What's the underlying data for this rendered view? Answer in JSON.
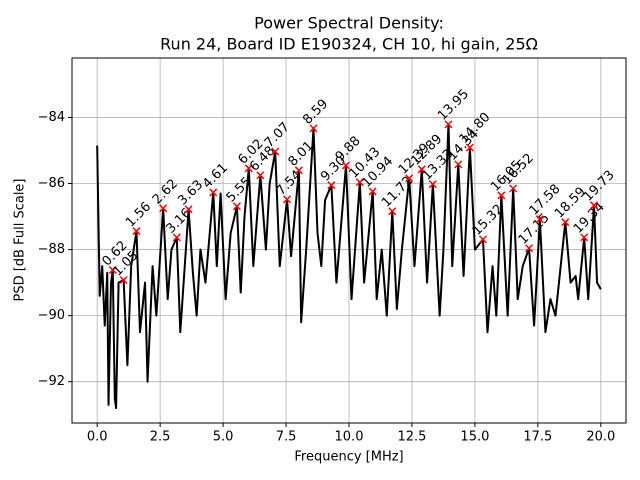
{
  "chart_data": {
    "type": "line",
    "title": [
      "Power Spectral Density:",
      "Run 24, Board ID E190324, CH 10, hi gain, 25Ω"
    ],
    "xlabel": "Frequency [MHz]",
    "ylabel": "PSD [dB Full Scale]",
    "color": "#000000",
    "x": [
      0,
      0.1,
      0.2,
      0.3,
      0.4,
      0.45,
      0.55,
      0.62,
      0.7,
      0.75,
      0.85,
      1.05,
      1.2,
      1.35,
      1.56,
      1.7,
      1.9,
      2.0,
      2.2,
      2.35,
      2.62,
      2.8,
      2.95,
      3.16,
      3.3,
      3.63,
      3.8,
      3.95,
      4.1,
      4.3,
      4.61,
      4.75,
      4.9,
      5.1,
      5.3,
      5.55,
      5.7,
      5.85,
      6.02,
      6.2,
      6.35,
      6.48,
      6.7,
      6.85,
      7.07,
      7.25,
      7.54,
      7.7,
      8.01,
      8.1,
      8.3,
      8.59,
      8.75,
      8.9,
      9.05,
      9.3,
      9.5,
      9.88,
      10.1,
      10.43,
      10.6,
      10.94,
      11.1,
      11.3,
      11.5,
      11.72,
      11.9,
      12.1,
      12.39,
      12.6,
      12.89,
      13.1,
      13.33,
      13.6,
      13.75,
      13.95,
      14.1,
      14.34,
      14.55,
      14.8,
      15.0,
      15.32,
      15.5,
      15.7,
      15.85,
      16.05,
      16.3,
      16.52,
      16.7,
      16.9,
      17.15,
      17.35,
      17.58,
      17.8,
      18.0,
      18.2,
      18.59,
      18.8,
      19.0,
      19.1,
      19.34,
      19.5,
      19.73,
      19.85,
      20.0
    ],
    "values": [
      -84.85,
      -89.4,
      -88.5,
      -90.3,
      -88.7,
      -92.7,
      -89,
      -88.62,
      -92.5,
      -92.8,
      -89,
      -88.92,
      -91.5,
      -88.5,
      -87.44,
      -90.5,
      -89,
      -92,
      -88.5,
      -90,
      -86.75,
      -89.5,
      -88,
      -87.63,
      -90.5,
      -86.78,
      -88.7,
      -90,
      -88,
      -89,
      -86.27,
      -88.5,
      -86.3,
      -89.5,
      -87.5,
      -86.69,
      -89.3,
      -87,
      -85.54,
      -88.5,
      -87,
      -85.75,
      -88,
      -86,
      -85.03,
      -88.5,
      -86.48,
      -88.2,
      -85.6,
      -90.2,
      -88,
      -84.33,
      -87.5,
      -88.5,
      -86.5,
      -86.05,
      -89,
      -85.45,
      -89.5,
      -85.96,
      -89,
      -86.24,
      -89.5,
      -88,
      -90,
      -86.84,
      -89.8,
      -88,
      -85.84,
      -88.5,
      -85.57,
      -89,
      -86.02,
      -90,
      -88,
      -84.21,
      -88.5,
      -85.42,
      -88.8,
      -84.91,
      -88,
      -87.69,
      -90.5,
      -88.5,
      -90,
      -86.36,
      -90,
      -86.15,
      -89.5,
      -88.5,
      -87.96,
      -90.3,
      -87.08,
      -90.5,
      -89.5,
      -90,
      -87.17,
      -89,
      -88.8,
      -89.5,
      -87.63,
      -89.5,
      -86.66,
      -89,
      -89.2
    ],
    "peaks": {
      "color": "#ff0000",
      "x": [
        0.62,
        1.05,
        1.56,
        2.62,
        3.16,
        3.63,
        4.61,
        5.55,
        6.02,
        6.48,
        7.07,
        7.54,
        8.01,
        8.59,
        9.3,
        9.88,
        10.43,
        10.94,
        11.72,
        12.39,
        12.89,
        13.33,
        13.95,
        14.34,
        14.8,
        15.32,
        16.05,
        16.52,
        17.15,
        17.58,
        18.59,
        19.34,
        19.73
      ],
      "values": [
        -88.62,
        -88.92,
        -87.44,
        -86.75,
        -87.63,
        -86.78,
        -86.27,
        -86.69,
        -85.54,
        -85.75,
        -85.03,
        -86.48,
        -85.6,
        -84.33,
        -86.05,
        -85.45,
        -85.96,
        -86.24,
        -86.84,
        -85.84,
        -85.57,
        -86.02,
        -84.21,
        -85.42,
        -84.91,
        -87.69,
        -86.36,
        -86.15,
        -87.96,
        -87.08,
        -87.17,
        -87.63,
        -86.66
      ],
      "labels": [
        "0.62",
        "1.05",
        "1.56",
        "2.62",
        "3.16",
        "3.63",
        "4.61",
        "5.55",
        "6.02",
        "6.48",
        "7.07",
        "7.54",
        "8.01",
        "8.59",
        "9.30",
        "9.88",
        "10.43",
        "10.94",
        "11.72",
        "12.39",
        "12.89",
        "13.33",
        "13.95",
        "14.34",
        "14.80",
        "15.32",
        "16.05",
        "16.52",
        "17.15",
        "17.58",
        "18.59",
        "19.34",
        "19.73"
      ]
    },
    "xlim": [
      -1,
      21
    ],
    "ylim": [
      -93.25,
      -82.2
    ],
    "xticks": [
      {
        "value": 0,
        "label": "0.0"
      },
      {
        "value": 2.5,
        "label": "2.5"
      },
      {
        "value": 5,
        "label": "5.0"
      },
      {
        "value": 7.5,
        "label": "7.5"
      },
      {
        "value": 10,
        "label": "10.0"
      },
      {
        "value": 12.5,
        "label": "12.5"
      },
      {
        "value": 15,
        "label": "15.0"
      },
      {
        "value": 17.5,
        "label": "17.5"
      },
      {
        "value": 20,
        "label": "20.0"
      }
    ],
    "yticks": [
      {
        "value": -92,
        "label": "−92"
      },
      {
        "value": -90,
        "label": "−90"
      },
      {
        "value": -88,
        "label": "−88"
      },
      {
        "value": -86,
        "label": "−86"
      },
      {
        "value": -84,
        "label": "−84"
      }
    ],
    "grid": true
  }
}
